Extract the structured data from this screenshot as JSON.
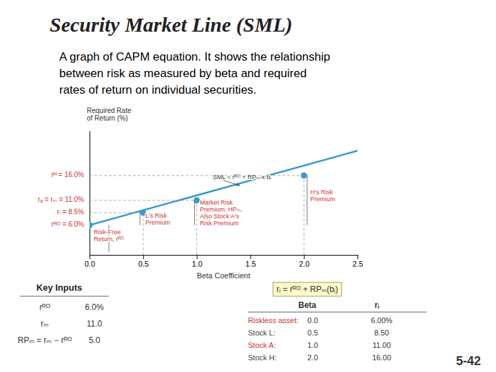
{
  "chart_data": {
    "type": "line",
    "title": "Security Market Line  (SML)",
    "subtitle": "A graph of CAPM equation. It shows the relationship\nbetween risk as measured by beta and required\nrates of return on individual securities.",
    "xlabel": "Beta Coefficient",
    "ylabel": "Required Rate\nof Return (%)",
    "xlim": [
      0.0,
      2.5
    ],
    "xticks": [
      {
        "value": 0.0,
        "label": "0.0"
      },
      {
        "value": 0.5,
        "label": "0.5"
      },
      {
        "value": 1.0,
        "label": "1.0"
      },
      {
        "value": 1.5,
        "label": "1.5"
      },
      {
        "value": 2.0,
        "label": "2.0"
      },
      {
        "value": 2.5,
        "label": "2.5"
      }
    ],
    "ylim": [
      0,
      25
    ],
    "tick_labels": "x",
    "series": [
      {
        "type": "line",
        "color": "#3399CC",
        "x": [
          0.0,
          2.5
        ],
        "values": [
          6.0,
          21.0
        ]
      },
      {
        "type": "scatter",
        "color": "#3399CC",
        "x": [
          0.0,
          0.5,
          1.0,
          2.0
        ],
        "values": [
          6.0,
          8.5,
          11.0,
          16.0
        ]
      },
      {
        "type": "guide",
        "line_style": "dashed",
        "color": "#999999",
        "x": [
          0.5,
          1.0,
          2.0
        ],
        "values": [
          8.5,
          11.0,
          16.0
        ]
      }
    ],
    "left_labels": [
      {
        "value": 6.0,
        "text": "rᴿᴼ = 6.0%",
        "color": "#CC3333"
      },
      {
        "value": 8.5,
        "text": "rₗ = 8.5%",
        "color": "#CC3333"
      },
      {
        "value": 11.0,
        "text": "rₐ = rₘ = 11.0%",
        "color": "#CC3333"
      },
      {
        "value": 16.0,
        "text": "rᴴ = 16.0%",
        "color": "#CC3333"
      }
    ],
    "annotations": [
      {
        "text": "SML = rᴿᴼ + RPₘ x bᵢ",
        "x": 1.15,
        "y": 15.5,
        "arrow_to": [
          1.4,
          14.0
        ],
        "color": "#333333"
      },
      {
        "text": "L's Risk\nPremium",
        "x": 0.52,
        "y": 7.1,
        "color": "#CC3333",
        "bracket": {
          "x": 0.47,
          "from": 6.0,
          "to": 8.5
        }
      },
      {
        "text": "Market Risk\nPremium, HPₘ,\nAlso Stock A's\nRisk Premium",
        "x": 1.03,
        "y": 8.3,
        "color": "#CC3333",
        "bracket": {
          "x": 0.98,
          "from": 6.0,
          "to": 11.0
        }
      },
      {
        "text": "H's Risk\nPremium",
        "x": 2.06,
        "y": 11.8,
        "color": "#CC3333",
        "bracket": {
          "x": 2.03,
          "from": 6.0,
          "to": 16.0
        }
      },
      {
        "text": "Risk-Free\nReturn, rᴿᴼ",
        "x": 0.04,
        "y": 3.8,
        "color": "#CC3333",
        "bracket": {
          "x": 0.18,
          "from": 0.5,
          "to": 6.0
        }
      }
    ],
    "key_inputs": {
      "title": "Key Inputs",
      "labels": [
        "rᴿᴼ",
        "rₘ",
        "RPₘ = rₘ − rᴿᴼ"
      ],
      "values": [
        "6.0%",
        "11.0",
        "5.0"
      ]
    },
    "table": {
      "header": "rᵢ = rᴿᴼ + RPₘ(bᵢ)",
      "columns": [
        "Beta",
        "rᵢ"
      ],
      "rows": [
        {
          "label": "Riskless asset:",
          "beta": "0.0",
          "r": "6.00%",
          "color": "#CC3333"
        },
        {
          "label": "Stock L:",
          "beta": "0.5",
          "r": "8.50",
          "color": "#444444"
        },
        {
          "label": "Stock A:",
          "beta": "1.0",
          "r": "11.00",
          "color": "#CC3333"
        },
        {
          "label": "Stock H:",
          "beta": "2.0",
          "r": "16.00",
          "color": "#444444"
        }
      ]
    },
    "slide_number": "5-42"
  }
}
